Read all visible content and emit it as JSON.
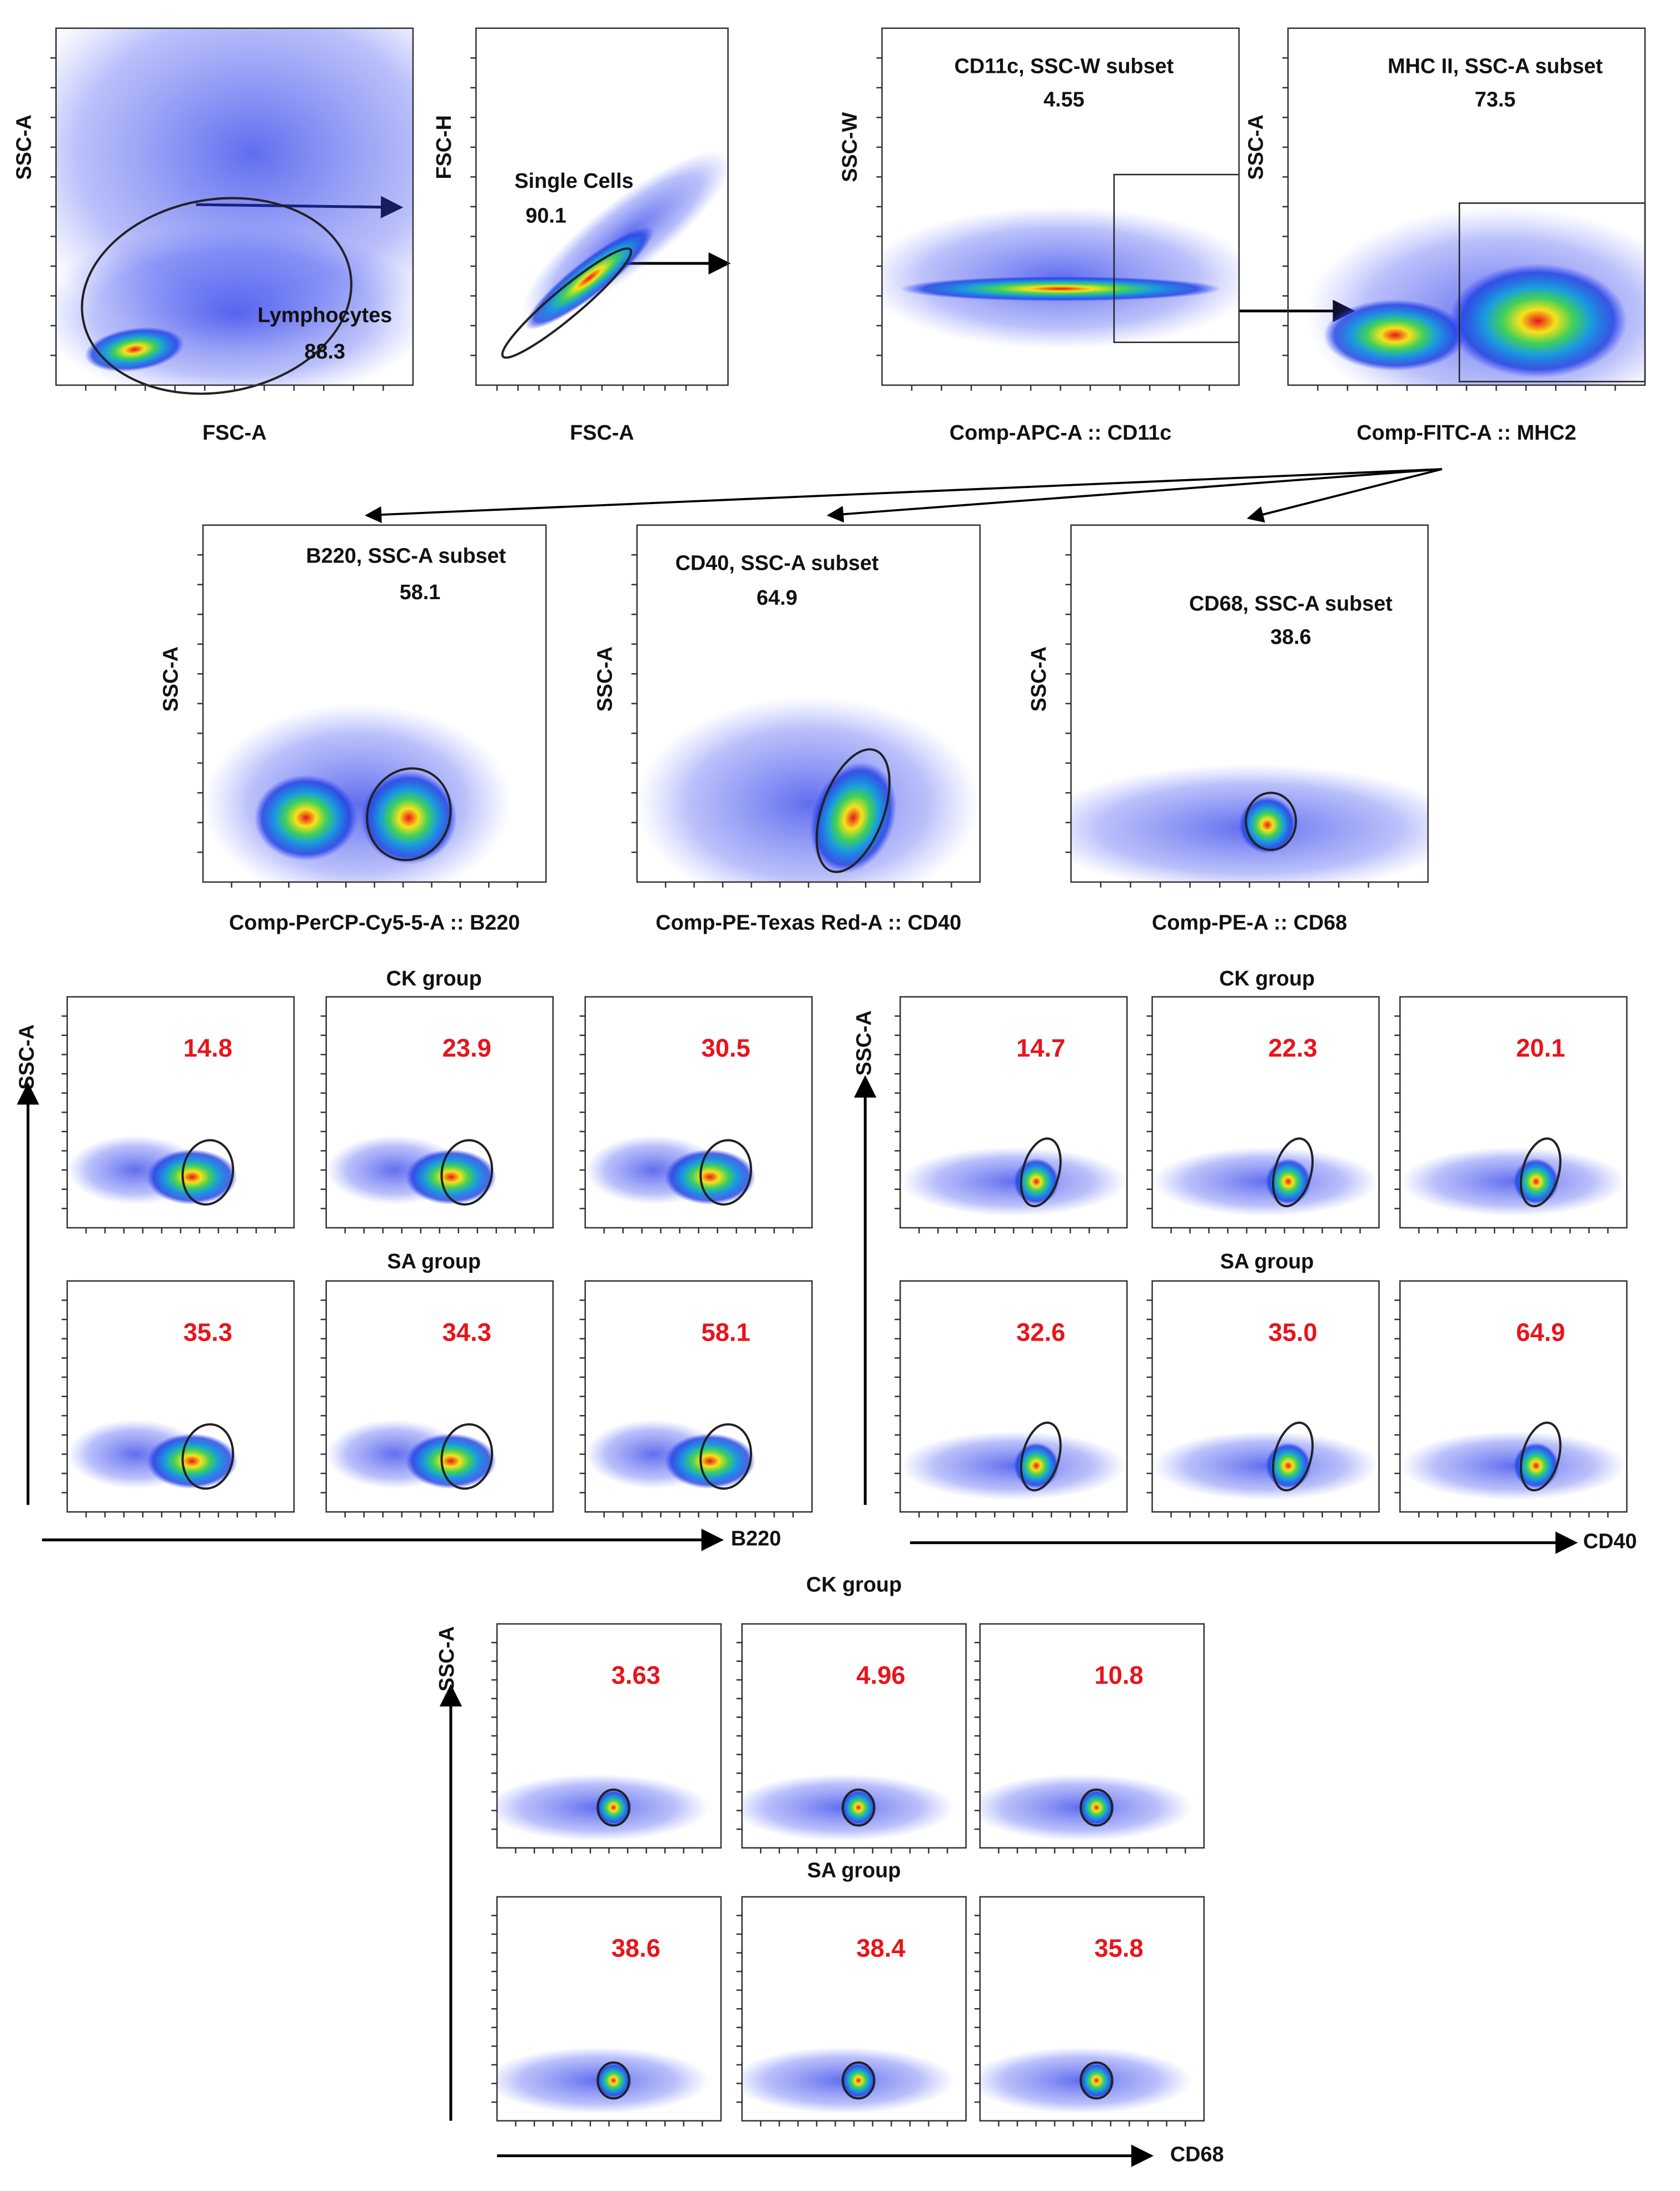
{
  "gating": {
    "panels": [
      {
        "gate": "Lymphocytes",
        "value": "88.3",
        "x_label": "FSC-A",
        "y_label": "SSC-A"
      },
      {
        "gate": "Single Cells",
        "value": "90.1",
        "x_label": "FSC-A",
        "y_label": "FSC-H"
      },
      {
        "gate": "CD11c, SSC-W subset",
        "value": "4.55",
        "x_label": "Comp-APC-A :: CD11c",
        "y_label": "SSC-W"
      },
      {
        "gate": "MHC II, SSC-A subset",
        "value": "73.5",
        "x_label": "Comp-FITC-A :: MHC2",
        "y_label": "SSC-A"
      }
    ]
  },
  "subsets": {
    "panels": [
      {
        "gate": "B220, SSC-A subset",
        "value": "58.1",
        "x_label": "Comp-PerCP-Cy5-5-A :: B220",
        "y_label": "SSC-A"
      },
      {
        "gate": "CD40, SSC-A subset",
        "value": "64.9",
        "x_label": "Comp-PE-Texas Red-A :: CD40",
        "y_label": "SSC-A"
      },
      {
        "gate": "CD68, SSC-A subset",
        "value": "38.6",
        "x_label": "Comp-PE-A :: CD68",
        "y_label": "SSC-A"
      }
    ]
  },
  "groups": [
    {
      "marker": "B220",
      "y_label": "SSC-A",
      "rows": [
        {
          "label": "CK group",
          "values": [
            "14.8",
            "23.9",
            "30.5"
          ]
        },
        {
          "label": "SA group",
          "values": [
            "35.3",
            "34.3",
            "58.1"
          ]
        }
      ]
    },
    {
      "marker": "CD40",
      "y_label": "SSC-A",
      "rows": [
        {
          "label": "CK group",
          "values": [
            "14.7",
            "22.3",
            "20.1"
          ]
        },
        {
          "label": "SA group",
          "values": [
            "32.6",
            "35.0",
            "64.9"
          ]
        }
      ]
    },
    {
      "marker": "CD68",
      "y_label": "SSC-A",
      "rows": [
        {
          "label": "CK group",
          "values": [
            "3.63",
            "4.96",
            "10.8"
          ]
        },
        {
          "label": "SA group",
          "values": [
            "38.6",
            "38.4",
            "35.8"
          ]
        }
      ]
    }
  ]
}
